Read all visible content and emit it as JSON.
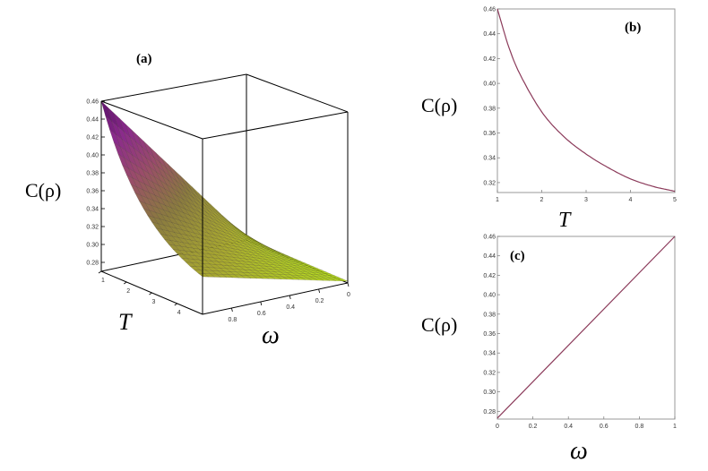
{
  "chart_data": [
    {
      "panel": "(a)",
      "type": "surface",
      "zlabel": "C(ρ)",
      "xlabel": "T",
      "ylabel": "ω",
      "x_range": [
        1,
        5
      ],
      "y_range": [
        0,
        1
      ],
      "zlim": [
        0.27,
        0.46
      ],
      "x_ticks": [
        "1",
        "2",
        "3",
        "4"
      ],
      "y_ticks": [
        "0.8",
        "0.6",
        "0.4",
        "0.2",
        "0"
      ],
      "z_ticks": [
        "0.46",
        "0.44",
        "0.42",
        "0.40",
        "0.38",
        "0.36",
        "0.34",
        "0.32",
        "0.30",
        "0.28"
      ],
      "corner_values": [
        {
          "T": 1,
          "omega": 1,
          "C": 0.46
        },
        {
          "T": 5,
          "omega": 1,
          "C": 0.312
        },
        {
          "T": 1,
          "omega": 0,
          "C": 0.272
        },
        {
          "T": 5,
          "omega": 0,
          "C": 0.272
        }
      ],
      "colormap": [
        "#5a1068",
        "#8a2a8c",
        "#9a4c6a",
        "#8a7a40",
        "#a8a830",
        "#b8e020"
      ]
    },
    {
      "panel": "(b)",
      "type": "line",
      "xlabel": "T",
      "ylabel": "C(ρ)",
      "xlim": [
        1,
        5
      ],
      "ylim": [
        0.312,
        0.46
      ],
      "x_ticks": [
        "1",
        "2",
        "3",
        "4",
        "5"
      ],
      "y_ticks": [
        "0.46",
        "0.44",
        "0.42",
        "0.40",
        "0.38",
        "0.36",
        "0.34",
        "0.32"
      ],
      "x": [
        1.0,
        1.25,
        1.5,
        2.0,
        2.5,
        3.0,
        3.5,
        4.0,
        4.5,
        5.0
      ],
      "y": [
        0.46,
        0.43,
        0.408,
        0.377,
        0.357,
        0.343,
        0.332,
        0.323,
        0.317,
        0.313
      ],
      "line_color": "#8b3a5a"
    },
    {
      "panel": "(c)",
      "type": "line",
      "xlabel": "ω",
      "ylabel": "C(ρ)",
      "xlim": [
        0,
        1
      ],
      "ylim": [
        0.272,
        0.46
      ],
      "x_ticks": [
        "0",
        "0.2",
        "0.4",
        "0.6",
        "0.8",
        "1"
      ],
      "y_ticks": [
        "0.46",
        "0.44",
        "0.42",
        "0.40",
        "0.38",
        "0.36",
        "0.34",
        "0.32",
        "0.30",
        "0.28"
      ],
      "x": [
        0,
        1
      ],
      "y": [
        0.273,
        0.46
      ],
      "line_color": "#8b3a5a"
    }
  ]
}
